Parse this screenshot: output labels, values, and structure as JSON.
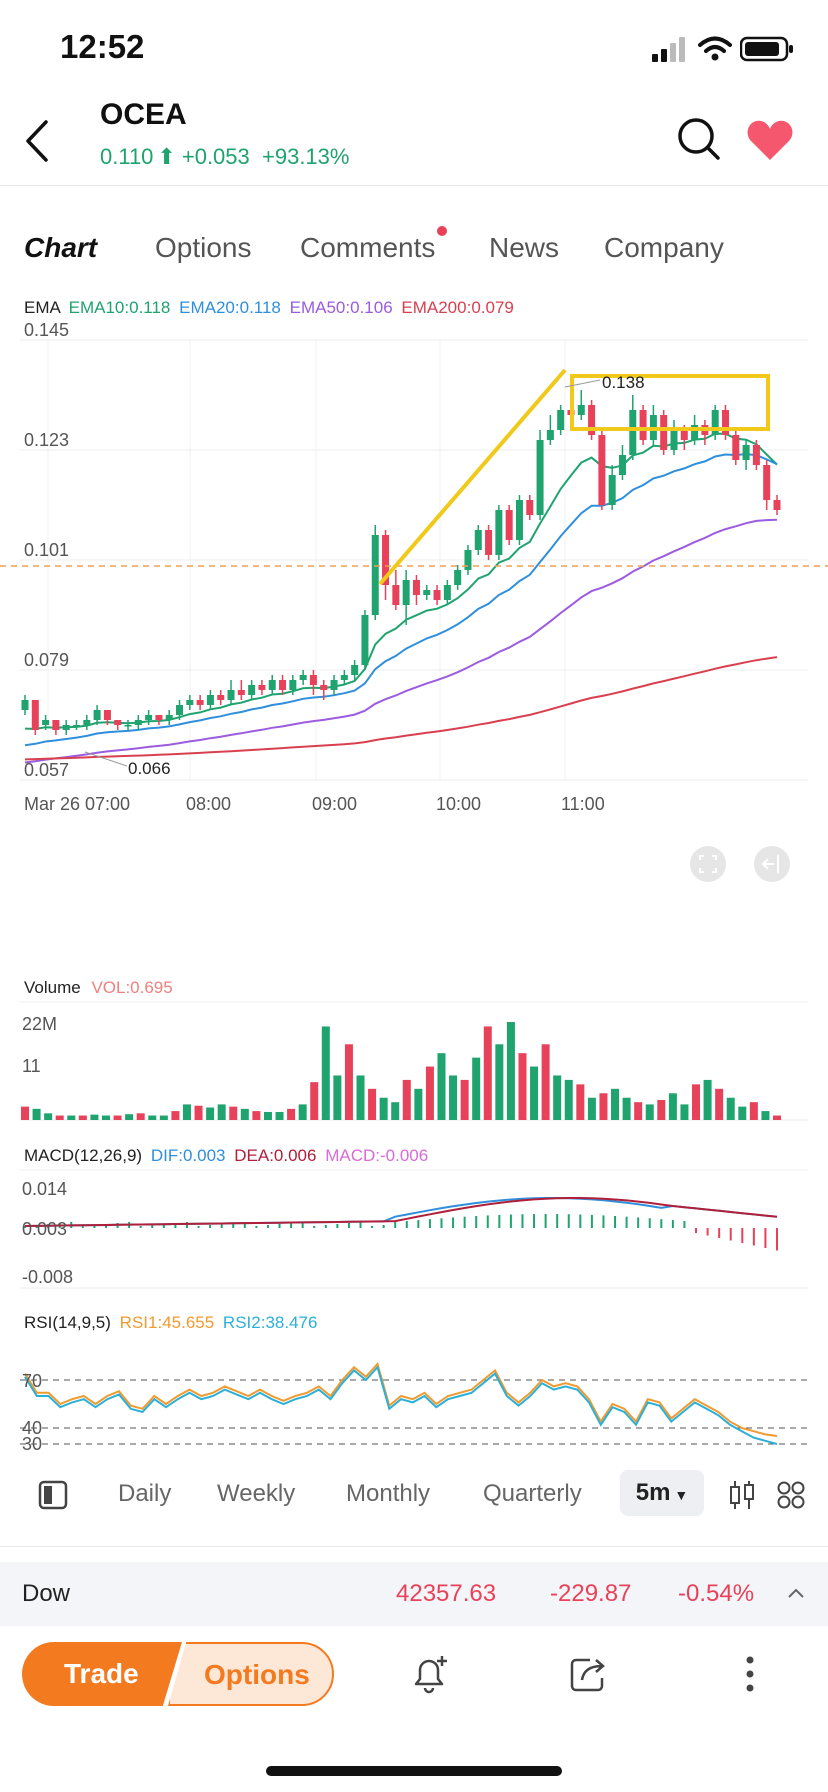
{
  "status": {
    "time": "12:52"
  },
  "header": {
    "symbol": "OCEA",
    "price": "0.110",
    "change": "+0.053",
    "change_pct": "+93.13%"
  },
  "tabs": [
    {
      "label": "Chart",
      "active": true
    },
    {
      "label": "Options",
      "active": false
    },
    {
      "label": "Comments",
      "active": false,
      "dot": true
    },
    {
      "label": "News",
      "active": false
    },
    {
      "label": "Company",
      "active": false
    }
  ],
  "ema": {
    "label": "EMA",
    "ema10": "EMA10:0.118",
    "ema20": "EMA20:0.118",
    "ema50": "EMA50:0.106",
    "ema200": "EMA200:0.079"
  },
  "price_chart": {
    "y_ticks": [
      "0.145",
      "0.123",
      "0.101",
      "0.079",
      "0.057"
    ],
    "x_ticks": [
      "Mar 26 07:00",
      "08:00",
      "09:00",
      "10:00",
      "11:00"
    ],
    "annotations": {
      "high": "0.138",
      "low": "0.066"
    },
    "ylim": [
      0.057,
      0.145
    ],
    "current_price_line": 0.11
  },
  "volume": {
    "label": "Volume",
    "vol": "VOL:0.695",
    "ticks": [
      "22M",
      "11"
    ]
  },
  "macd": {
    "label": "MACD(12,26,9)",
    "dif": "DIF:0.003",
    "dea": "DEA:0.006",
    "macd": "MACD:-0.006",
    "ticks": [
      "0.014",
      "0.003",
      "-0.008"
    ]
  },
  "rsi": {
    "label": "RSI(14,9,5)",
    "rsi1": "RSI1:45.655",
    "rsi2": "RSI2:38.476",
    "ticks": [
      "70",
      "40",
      "30"
    ]
  },
  "periods": [
    "Daily",
    "Weekly",
    "Monthly",
    "Quarterly"
  ],
  "interval": "5m",
  "dow": {
    "name": "Dow",
    "value": "42357.63",
    "change": "-229.87",
    "pct": "-0.54%"
  },
  "bottom": {
    "trade": "Trade",
    "options": "Options"
  },
  "colors": {
    "up": "#1fa36f",
    "down": "#e8415a",
    "ema10": "#1fa36f",
    "ema20": "#2f8fdc",
    "ema50": "#9b5ce0",
    "ema200": "#d9404f",
    "accent": "#f47a1f",
    "highlight": "#f0c91b"
  }
}
